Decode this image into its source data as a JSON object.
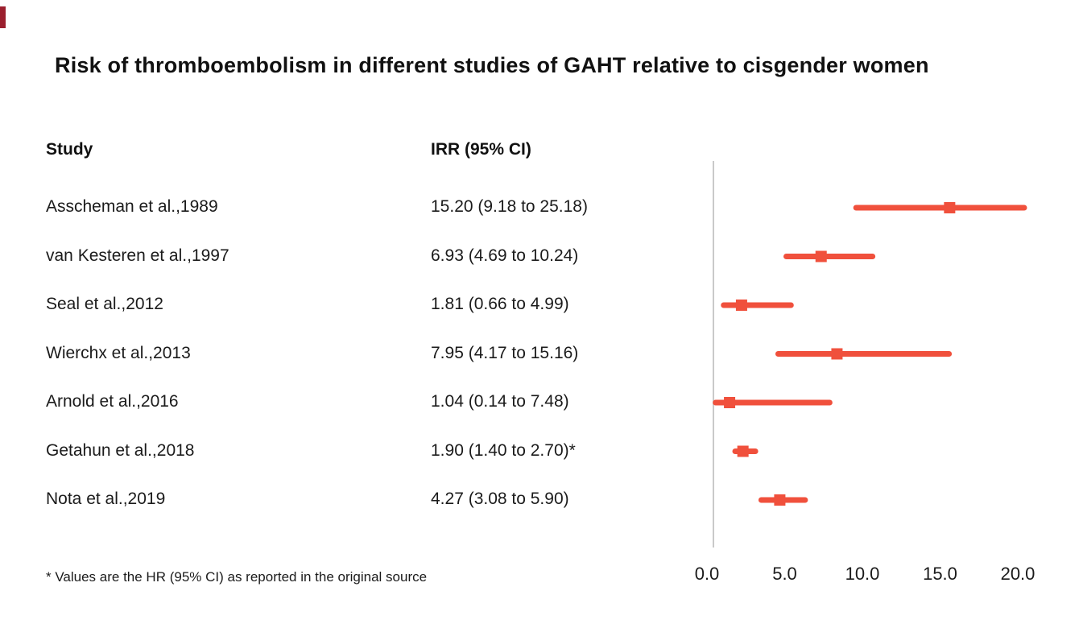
{
  "accent_color": "#f0503c",
  "reference_line_color": "#c9c9c9",
  "title": "Risk of thromboembolism in different studies of GAHT relative to cisgender women",
  "columns": {
    "study": "Study",
    "irr": "IRR (95% CI)"
  },
  "footnote": "* Values are the HR (95% CI) as reported in the original source",
  "chart_data": {
    "type": "forest",
    "marker": "square",
    "xlabel": "",
    "ylabel": "",
    "xlim": [
      0,
      20
    ],
    "reference_line_x": 0,
    "x_ticks": [
      0,
      5,
      10,
      15,
      20
    ],
    "x_tick_labels": [
      "0.0",
      "5.0",
      "10.0",
      "15.0",
      "20.0"
    ],
    "rows": [
      {
        "study": "Asscheman et al.,1989",
        "irr_label": "15.20 (9.18 to 25.18)",
        "estimate": 15.2,
        "ci_low": 9.18,
        "ci_high": 25.18
      },
      {
        "study": "van Kesteren et al.,1997",
        "irr_label": "6.93 (4.69 to 10.24)",
        "estimate": 6.93,
        "ci_low": 4.69,
        "ci_high": 10.24
      },
      {
        "study": "Seal et al.,2012",
        "irr_label": "1.81 (0.66 to 4.99)",
        "estimate": 1.81,
        "ci_low": 0.66,
        "ci_high": 4.99
      },
      {
        "study": "Wierchx et al.,2013",
        "irr_label": "7.95 (4.17 to 15.16)",
        "estimate": 7.95,
        "ci_low": 4.17,
        "ci_high": 15.16
      },
      {
        "study": "Arnold et al.,2016",
        "irr_label": "1.04 (0.14 to 7.48)",
        "estimate": 1.04,
        "ci_low": 0.14,
        "ci_high": 7.48
      },
      {
        "study": "Getahun et al.,2018",
        "irr_label": "1.90 (1.40 to 2.70)*",
        "estimate": 1.9,
        "ci_low": 1.4,
        "ci_high": 2.7
      },
      {
        "study": "Nota et al.,2019",
        "irr_label": "4.27 (3.08 to 5.90)",
        "estimate": 4.27,
        "ci_low": 3.08,
        "ci_high": 5.9
      }
    ]
  }
}
